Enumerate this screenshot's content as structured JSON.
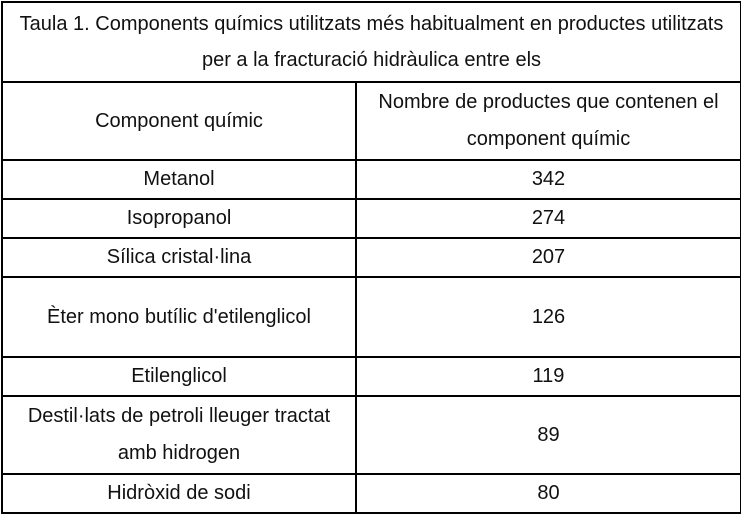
{
  "table": {
    "title": "Taula 1. Components químics utilitzats més habitualment en productes utilitzats per a la fracturació hidràulica entre els",
    "header": [
      "Component químic",
      "Nombre de productes que contenen el component químic"
    ],
    "rows": [
      [
        "Metanol",
        342
      ],
      [
        "Isopropanol",
        274
      ],
      [
        "Sílica cristal·lina",
        207
      ],
      [
        "Èter mono butílic d'etilenglicol",
        126
      ],
      [
        "Etilenglicol",
        119
      ],
      [
        "Destil·lats de petroli lleuger tractat amb hidrogen",
        89
      ],
      [
        "Hidròxid de sodi",
        80
      ]
    ]
  }
}
